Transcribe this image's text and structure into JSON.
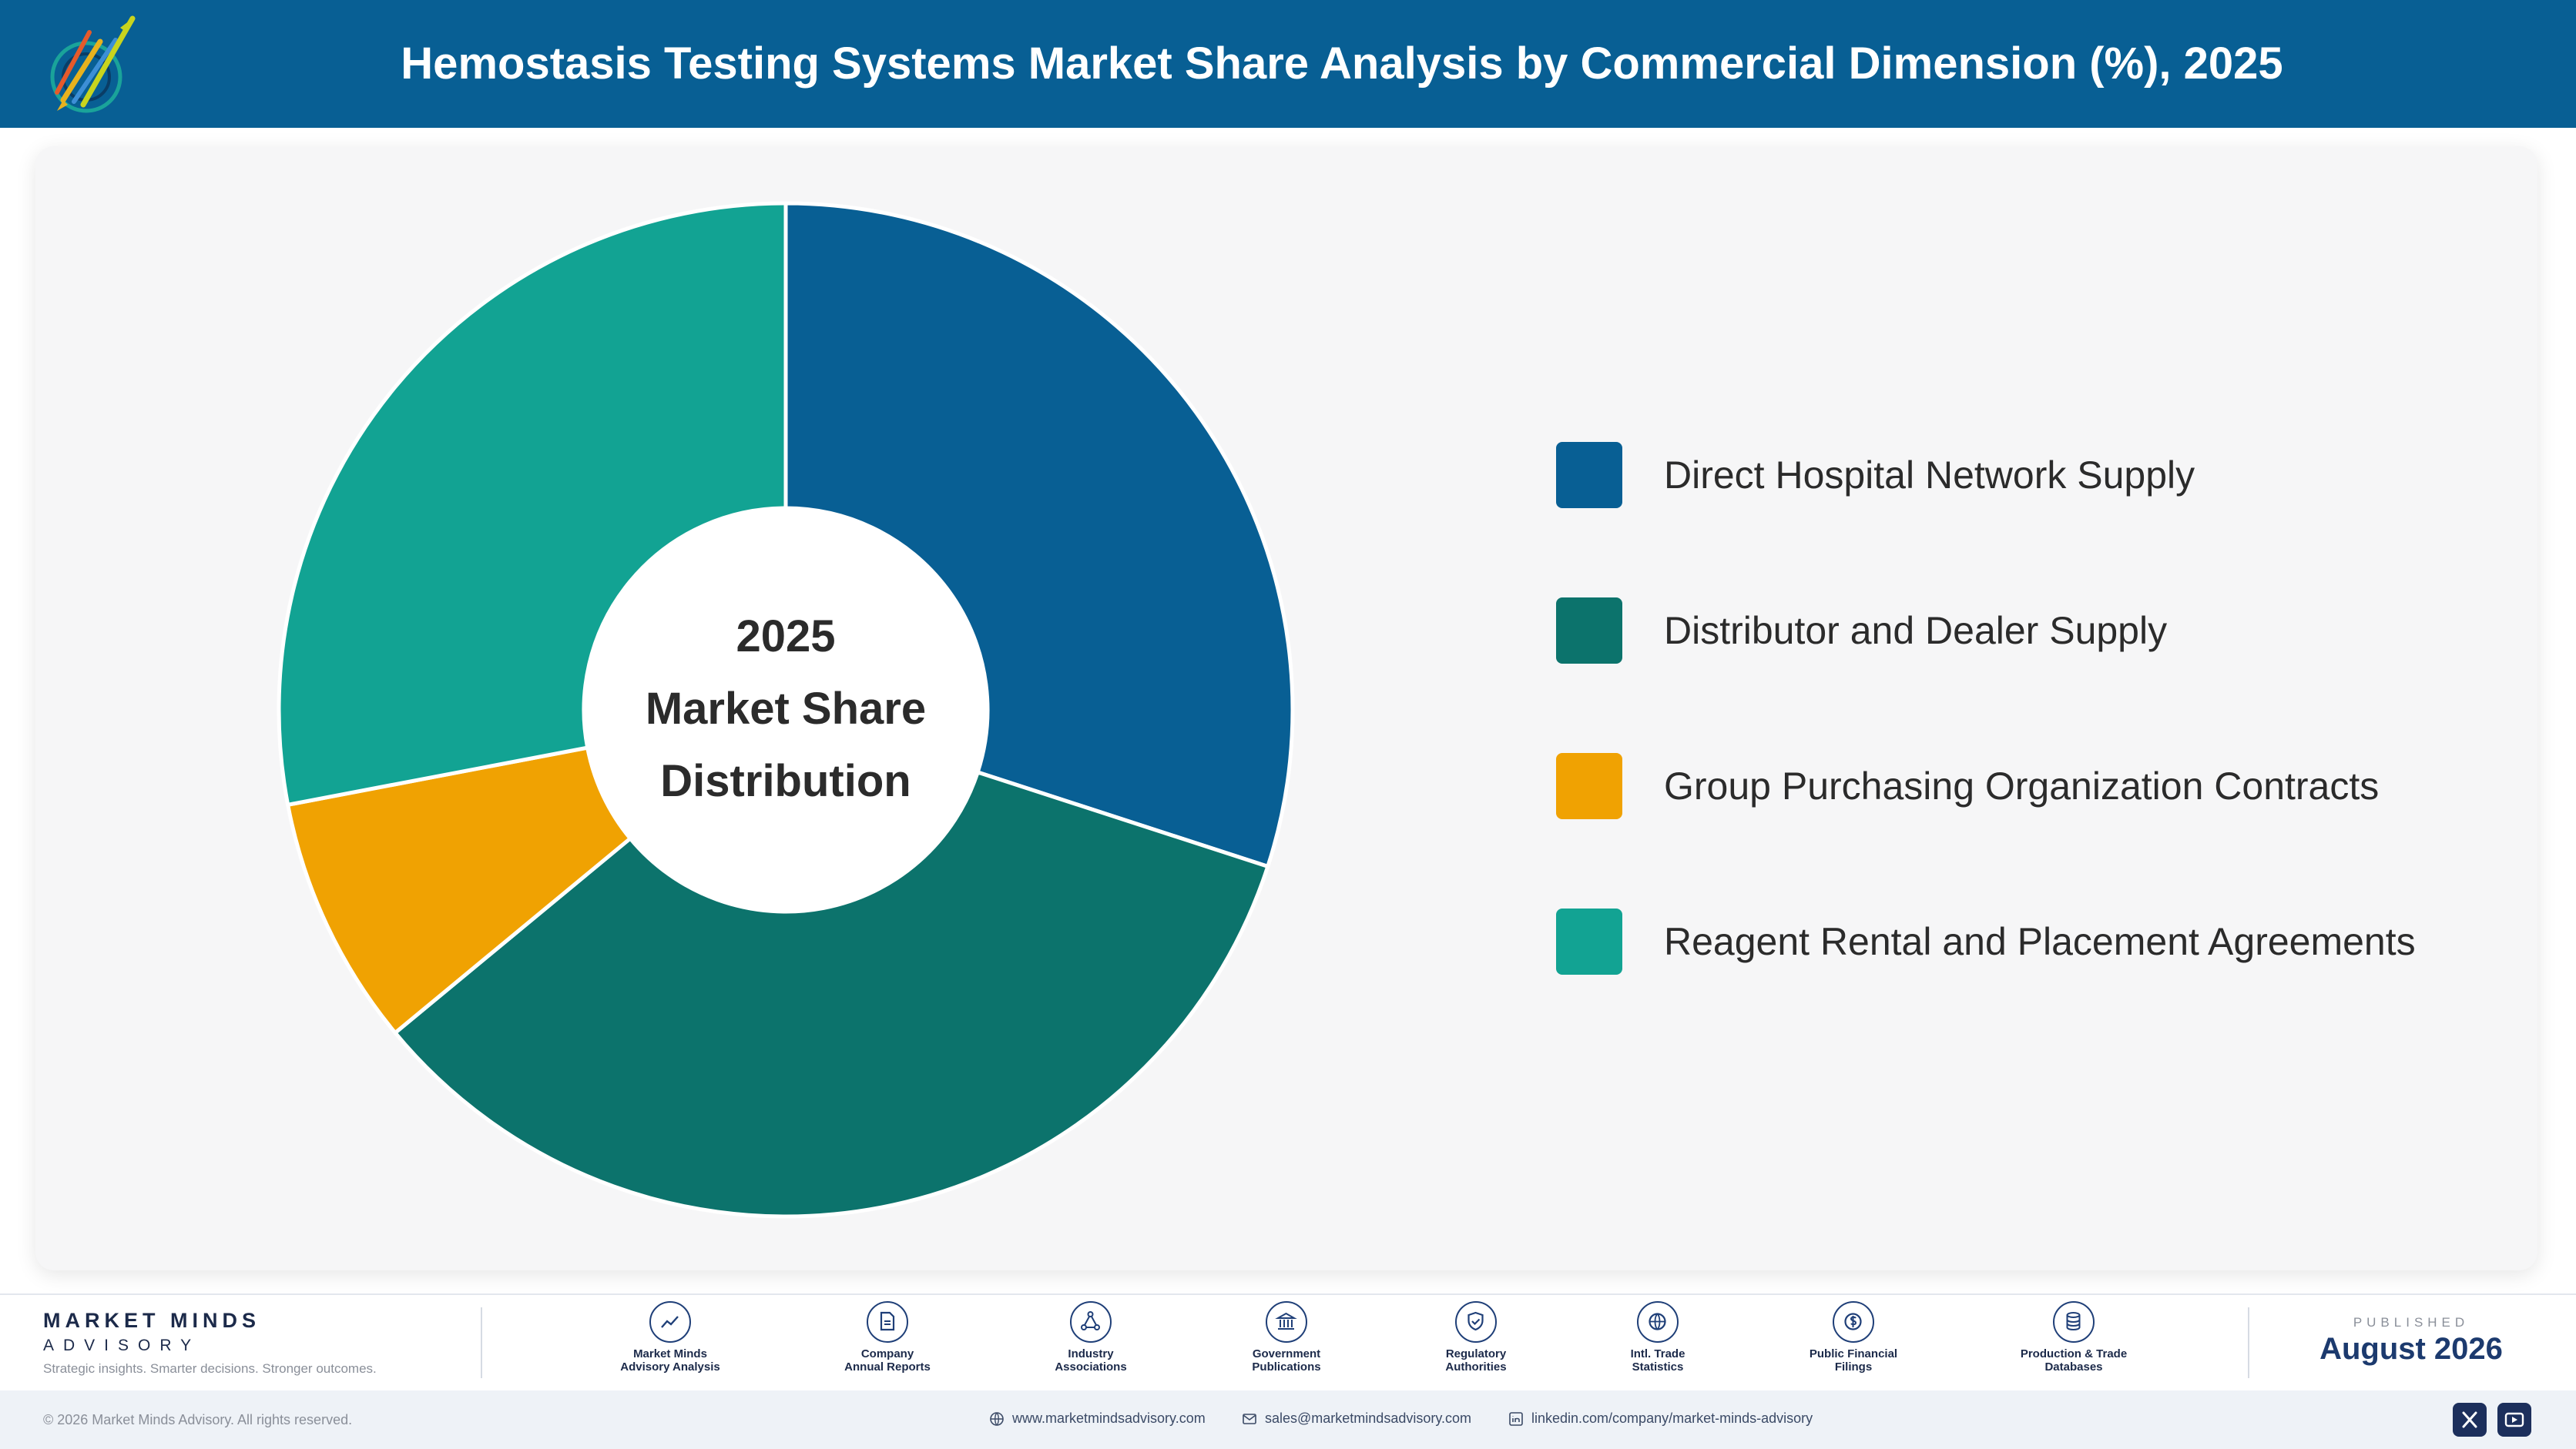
{
  "header": {
    "title": "Hemostasis Testing Systems Market Share Analysis by Commercial Dimension (%), 2025"
  },
  "chart_data": {
    "type": "pie",
    "categories": [
      "Direct Hospital Network Supply",
      "Distributor and Dealer Supply",
      "Group Purchasing Organization Contracts",
      "Reagent Rental and Placement Agreements"
    ],
    "values": [
      30,
      34,
      8,
      28
    ],
    "colors": [
      "#085f94",
      "#0c736c",
      "#f0a202",
      "#12a393"
    ],
    "center_label": [
      "2025",
      "Market Share",
      "Distribution"
    ],
    "legend_position": "right"
  },
  "footer": {
    "brand_name": "MARKET MINDS",
    "brand_sub": "ADVISORY",
    "tagline": "Strategic insights. Smarter decisions. Stronger outcomes.",
    "sources": [
      {
        "line1": "Market Minds",
        "line2": "Advisory Analysis",
        "icon": "chart-line-icon"
      },
      {
        "line1": "Company",
        "line2": "Annual Reports",
        "icon": "document-icon"
      },
      {
        "line1": "Industry",
        "line2": "Associations",
        "icon": "network-icon"
      },
      {
        "line1": "Government",
        "line2": "Publications",
        "icon": "government-building-icon"
      },
      {
        "line1": "Regulatory",
        "line2": "Authorities",
        "icon": "shield-check-icon"
      },
      {
        "line1": "Intl. Trade",
        "line2": "Statistics",
        "icon": "globe-icon"
      },
      {
        "line1": "Public Financial",
        "line2": "Filings",
        "icon": "dollar-coin-icon"
      },
      {
        "line1": "Production & Trade",
        "line2": "Databases",
        "icon": "database-icon"
      }
    ],
    "published_label": "PUBLISHED",
    "published_date": "August 2026",
    "copyright": "© 2026 Market Minds Advisory. All rights reserved.",
    "website": "www.marketmindsadvisory.com",
    "email": "sales@marketmindsadvisory.com",
    "linkedin": "linkedin.com/company/market-minds-advisory"
  }
}
